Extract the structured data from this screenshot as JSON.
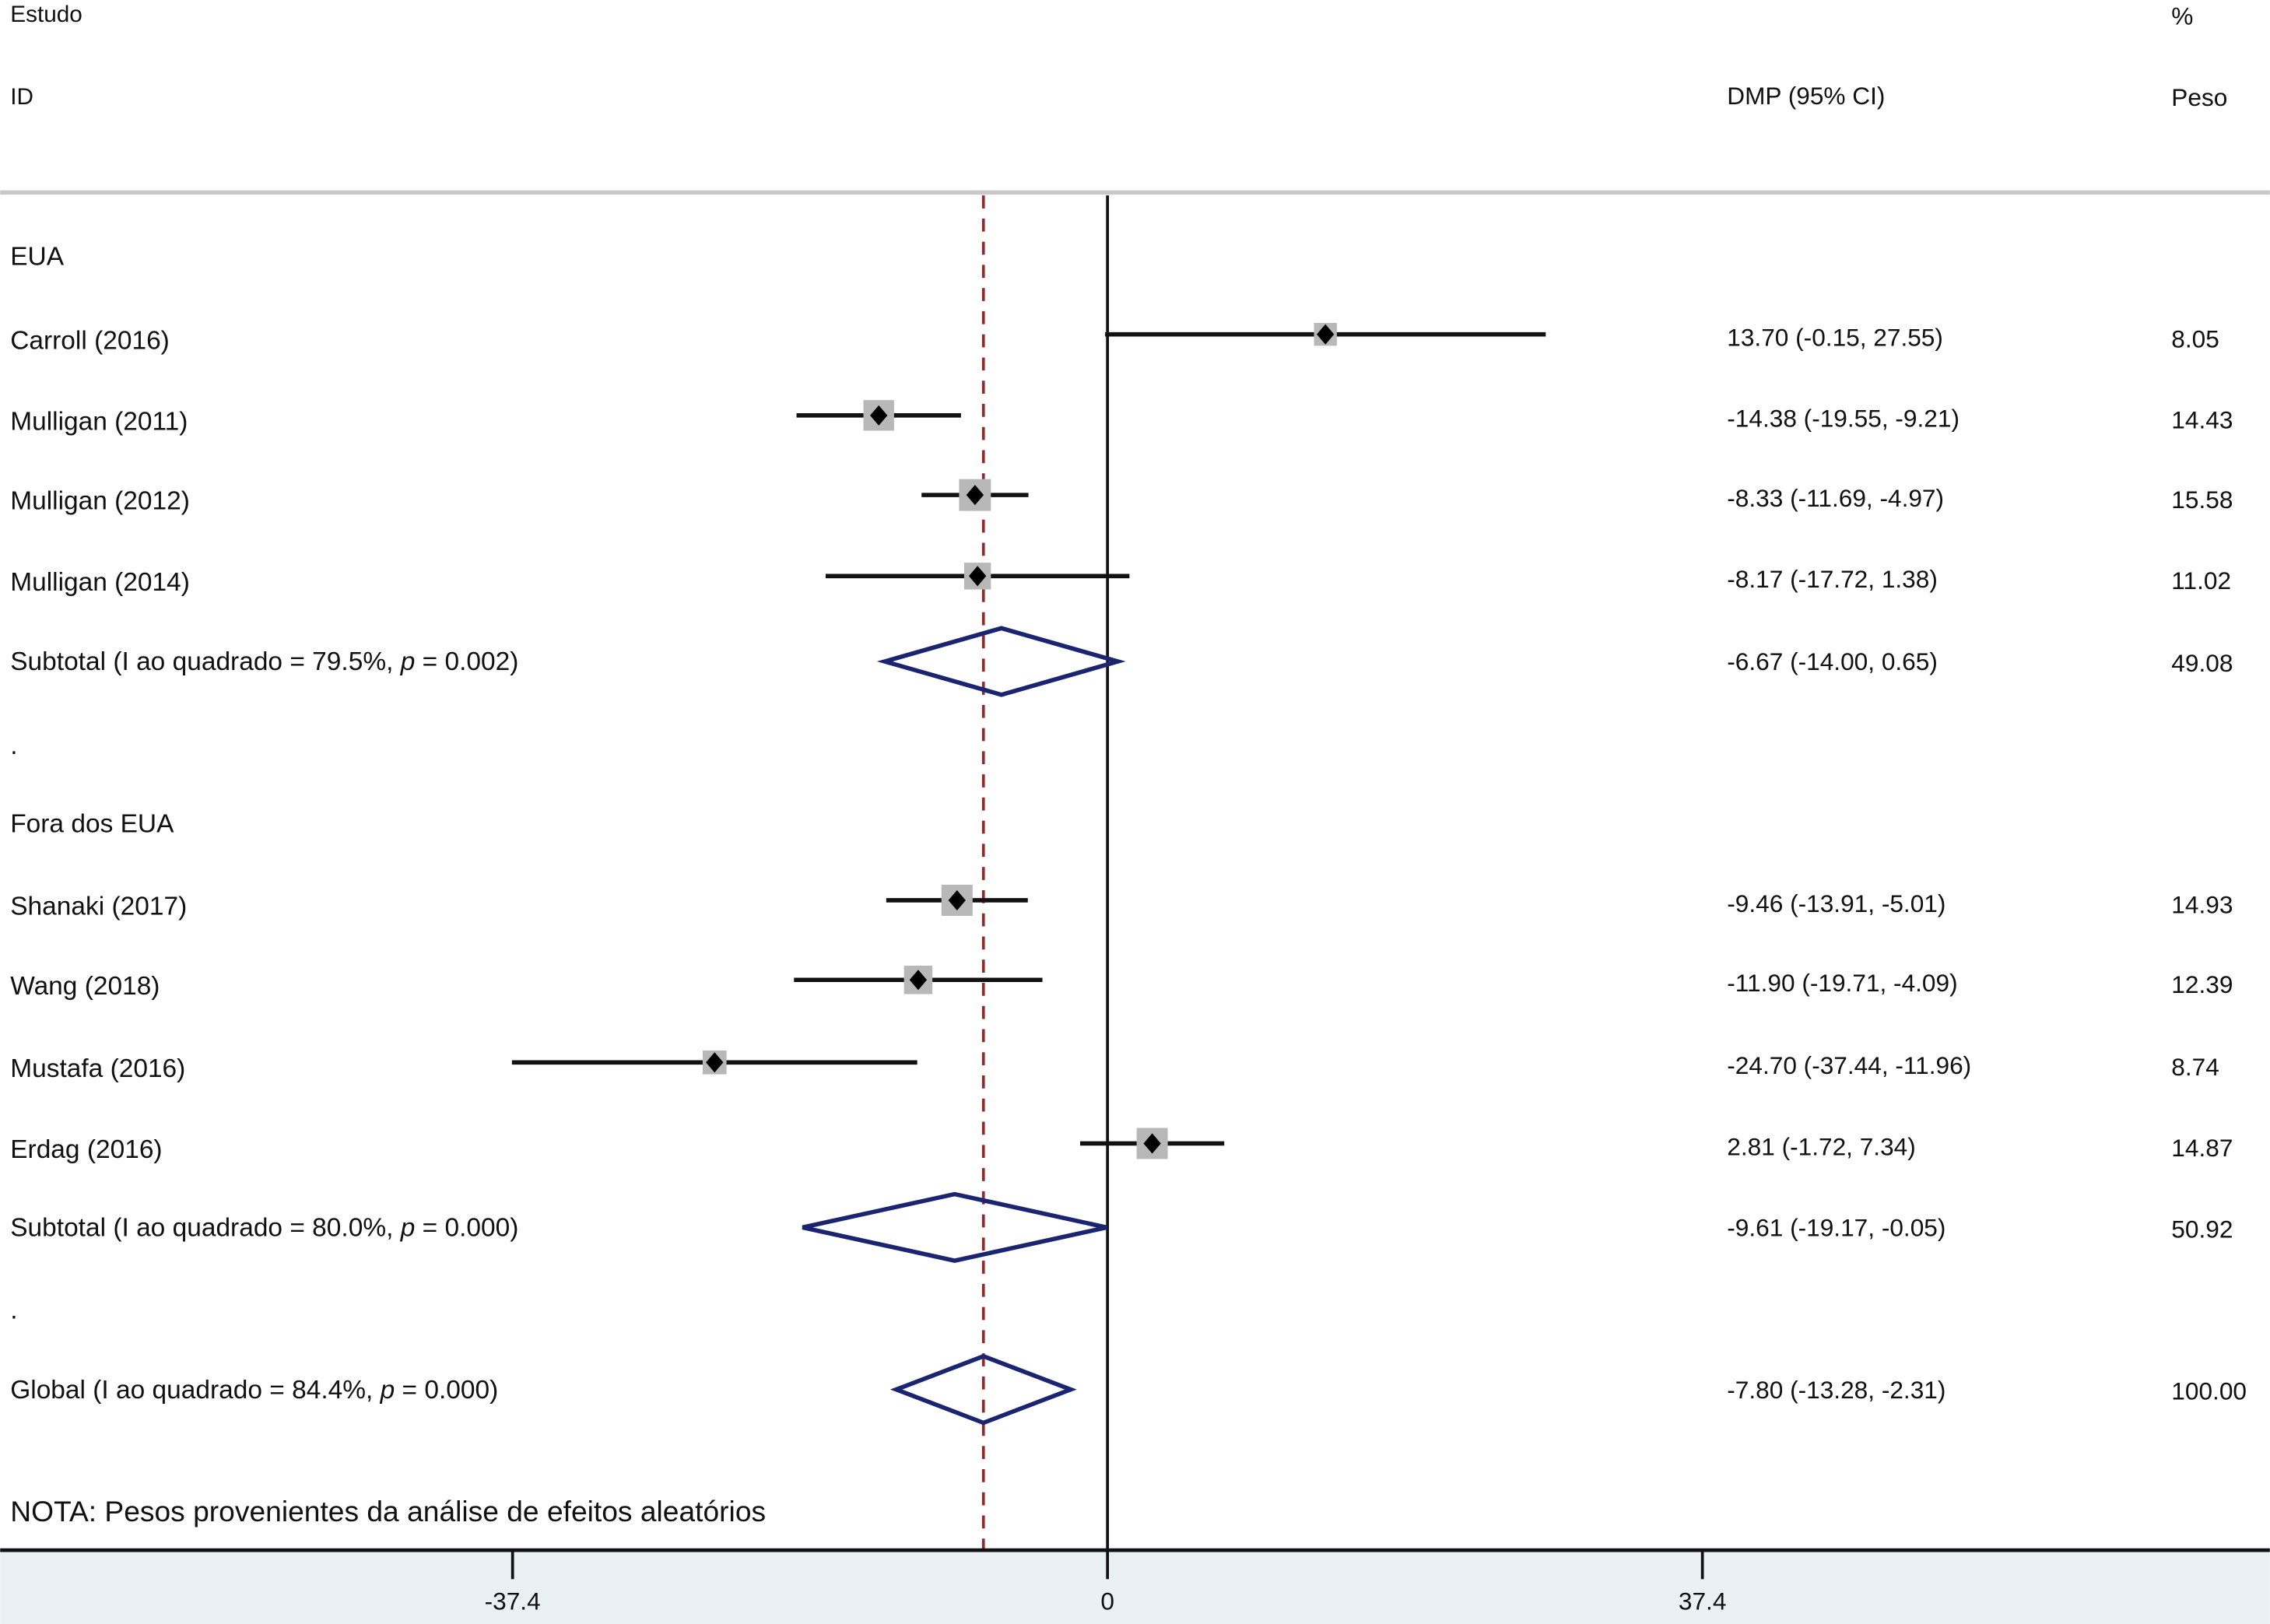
{
  "chart_data": {
    "type": "forest",
    "header": {
      "study_line1": "Estudo",
      "study_line2": "ID",
      "effect": "DMP (95% CI)",
      "weight_line1": "%",
      "weight_line2": "Peso"
    },
    "xlim": [
      -37.4,
      37.4
    ],
    "xticks": [
      -37.4,
      0,
      37.4
    ],
    "xtick_labels": [
      "-37.4",
      "0",
      "37.4"
    ],
    "overall_line": -7.8,
    "rows": [
      {
        "kind": "group",
        "label": "EUA"
      },
      {
        "kind": "study",
        "label": "Carroll (2016)",
        "est": 13.7,
        "lo": -0.15,
        "hi": 27.55,
        "ci_text": "13.70 (-0.15, 27.55)",
        "weight": "8.05"
      },
      {
        "kind": "study",
        "label": "Mulligan (2011)",
        "est": -14.38,
        "lo": -19.55,
        "hi": -9.21,
        "ci_text": "-14.38 (-19.55, -9.21)",
        "weight": "14.43"
      },
      {
        "kind": "study",
        "label": "Mulligan (2012)",
        "est": -8.33,
        "lo": -11.69,
        "hi": -4.97,
        "ci_text": "-8.33 (-11.69, -4.97)",
        "weight": "15.58"
      },
      {
        "kind": "study",
        "label": "Mulligan (2014)",
        "est": -8.17,
        "lo": -17.72,
        "hi": 1.38,
        "ci_text": "-8.17 (-17.72, 1.38)",
        "weight": "11.02"
      },
      {
        "kind": "summary",
        "label": "Subtotal (I ao quadrado = 79.5%, ",
        "p_label": "p",
        "p_value": " = 0.002)",
        "est": -6.67,
        "lo": -14.0,
        "hi": 0.65,
        "ci_text": "-6.67 (-14.00, 0.65)",
        "weight": "49.08"
      },
      {
        "kind": "spacer",
        "label": "."
      },
      {
        "kind": "group",
        "label": "Fora dos EUA"
      },
      {
        "kind": "study",
        "label": "Shanaki (2017)",
        "est": -9.46,
        "lo": -13.91,
        "hi": -5.01,
        "ci_text": "-9.46 (-13.91, -5.01)",
        "weight": "14.93"
      },
      {
        "kind": "study",
        "label": "Wang (2018)",
        "est": -11.9,
        "lo": -19.71,
        "hi": -4.09,
        "ci_text": "-11.90 (-19.71, -4.09)",
        "weight": "12.39"
      },
      {
        "kind": "study",
        "label": "Mustafa (2016)",
        "est": -24.7,
        "lo": -37.44,
        "hi": -11.96,
        "ci_text": "-24.70 (-37.44, -11.96)",
        "weight": "8.74"
      },
      {
        "kind": "study",
        "label": "Erdag (2016)",
        "est": 2.81,
        "lo": -1.72,
        "hi": 7.34,
        "ci_text": "2.81 (-1.72, 7.34)",
        "weight": "14.87"
      },
      {
        "kind": "summary",
        "label": "Subtotal (I ao quadrado = 80.0%, ",
        "p_label": "p",
        "p_value": " = 0.000)",
        "est": -9.61,
        "lo": -19.17,
        "hi": -0.05,
        "ci_text": "-9.61 (-19.17, -0.05)",
        "weight": "50.92"
      },
      {
        "kind": "spacer",
        "label": "."
      },
      {
        "kind": "summary",
        "label": "Global (I ao quadrado = 84.4%, ",
        "p_label": "p",
        "p_value": " = 0.000)",
        "est": -7.8,
        "lo": -13.28,
        "hi": -2.31,
        "ci_text": "-7.80 (-13.28, -2.31)",
        "weight": "100.00"
      }
    ],
    "note": "NOTA: Pesos provenientes da análise de efeitos aleatórios",
    "colors": {
      "diamond": "#1a2470",
      "overall_line": "#8b2d2d",
      "weight_box": "#b8b8b8",
      "axis_band": "#eaf1f5",
      "header_rule": "#c8c8c8"
    }
  }
}
